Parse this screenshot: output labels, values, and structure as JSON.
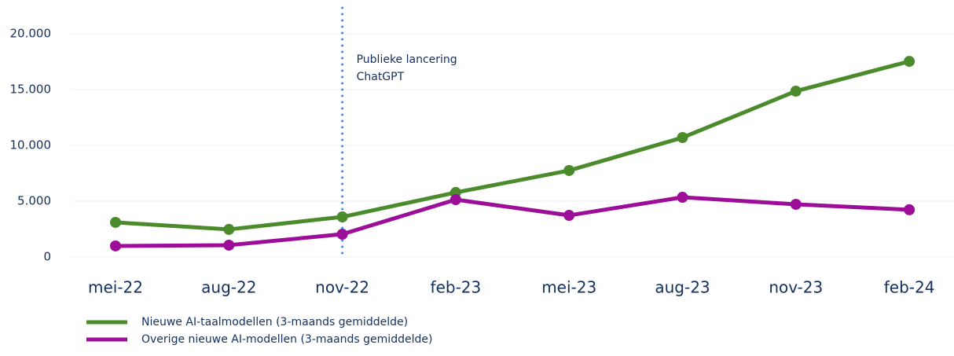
{
  "chart_data": {
    "type": "line",
    "categories": [
      "mei-22",
      "aug-22",
      "nov-22",
      "feb-23",
      "mei-23",
      "aug-23",
      "nov-23",
      "feb-24"
    ],
    "series": [
      {
        "name": "Nieuwe AI-taalmodellen (3-maands gemiddelde)",
        "color": "#4b8b2b",
        "values": [
          3100,
          2470,
          3590,
          5780,
          7750,
          10700,
          14860,
          17530
        ]
      },
      {
        "name": "Overige nieuwe AI-modellen (3-maands gemiddelde)",
        "color": "#9c0d98",
        "values": [
          990,
          1060,
          2040,
          5140,
          3730,
          5350,
          4720,
          4230
        ]
      }
    ],
    "ylim": [
      0,
      20000
    ],
    "yticks": [
      0,
      {
        "value": 5000,
        "label": "5.000"
      },
      {
        "value": 10000,
        "label": "10.000"
      },
      {
        "value": 15000,
        "label": "15.000"
      },
      {
        "value": 20000,
        "label": "20.000"
      }
    ],
    "grid": true,
    "annotation": {
      "x": "nov-22",
      "lines": [
        "Publieke lancering",
        "ChatGPT"
      ]
    }
  }
}
